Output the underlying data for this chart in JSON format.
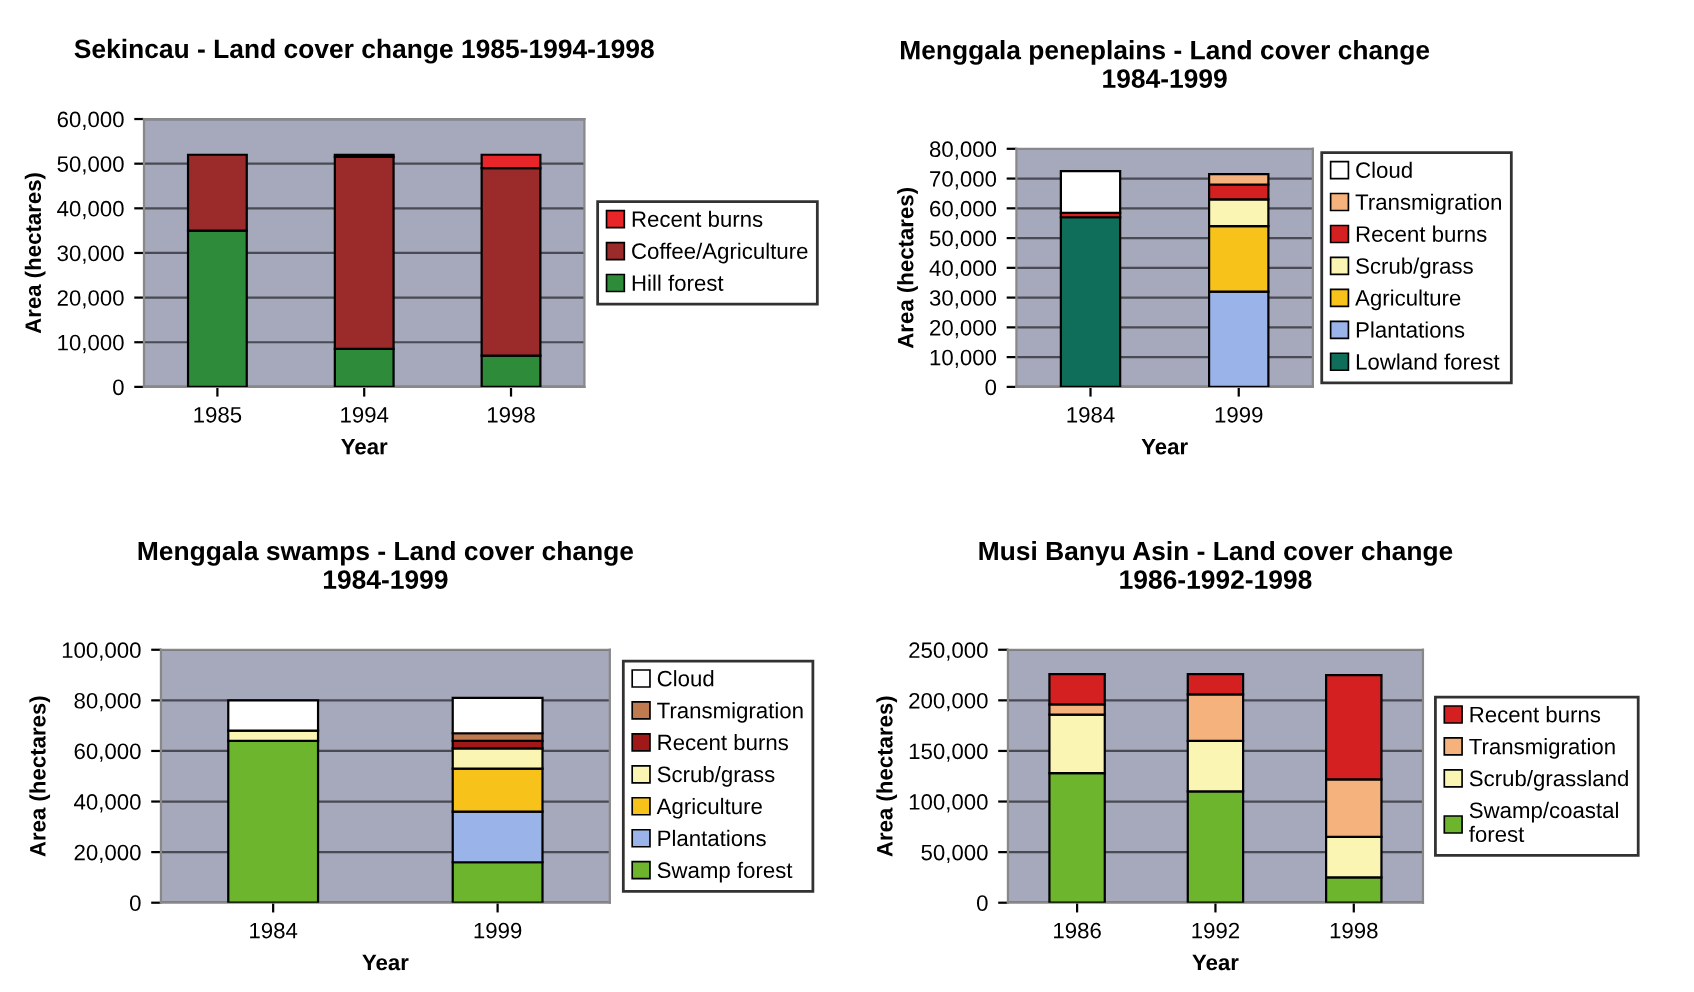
{
  "chart_data": [
    {
      "type": "bar",
      "stacked": true,
      "title": "Sekincau - Land cover change 1985-1994-1998",
      "xlabel": "Year",
      "ylabel": "Area (hectares)",
      "categories": [
        "1985",
        "1994",
        "1998"
      ],
      "ylim": [
        0,
        60000
      ],
      "yticks": [
        0,
        {
          "value": 10000,
          "label": "10,000"
        },
        {
          "value": 20000,
          "label": "20,000"
        },
        {
          "value": 30000,
          "label": "30,000"
        },
        {
          "value": 40000,
          "label": "40,000"
        },
        {
          "value": 50000,
          "label": "50,000"
        },
        {
          "value": 60000,
          "label": "60,000"
        }
      ],
      "grid": "y",
      "legend": "right",
      "series": [
        {
          "name": "Hill forest",
          "color": "#2e8b3a",
          "values": [
            35000,
            8500,
            7000
          ]
        },
        {
          "name": "Coffee/Agriculture",
          "color": "#9b2a2a",
          "values": [
            17000,
            43000,
            42000
          ]
        },
        {
          "name": "Recent burns",
          "color": "#e8262a",
          "values": [
            0,
            500,
            3000
          ]
        }
      ]
    },
    {
      "type": "bar",
      "stacked": true,
      "title": "Menggala peneplains - Land cover change\n1984-1999",
      "xlabel": "Year",
      "ylabel": "Area (hectares)",
      "categories": [
        "1984",
        "1999"
      ],
      "ylim": [
        0,
        80000
      ],
      "yticks": [
        0,
        {
          "value": 10000,
          "label": "10,000"
        },
        {
          "value": 20000,
          "label": "20,000"
        },
        {
          "value": 30000,
          "label": "30,000"
        },
        {
          "value": 40000,
          "label": "40,000"
        },
        {
          "value": 50000,
          "label": "50,000"
        },
        {
          "value": 60000,
          "label": "60,000"
        },
        {
          "value": 70000,
          "label": "70,000"
        },
        {
          "value": 80000,
          "label": "80,000"
        }
      ],
      "grid": "y",
      "legend": "right",
      "series": [
        {
          "name": "Lowland forest",
          "color": "#0f6e5a",
          "values": [
            57000,
            0
          ]
        },
        {
          "name": "Plantations",
          "color": "#9ab4ea",
          "values": [
            0,
            32000
          ]
        },
        {
          "name": "Agriculture",
          "color": "#f7c21a",
          "values": [
            0,
            22000
          ]
        },
        {
          "name": "Scrub/grass",
          "color": "#fbf5b4",
          "values": [
            0,
            9000
          ]
        },
        {
          "name": "Recent burns",
          "color": "#d42020",
          "values": [
            1500,
            5000
          ]
        },
        {
          "name": "Transmigration",
          "color": "#f5b27c",
          "values": [
            0,
            3500
          ]
        },
        {
          "name": "Cloud",
          "color": "#ffffff",
          "values": [
            14000,
            0
          ]
        }
      ]
    },
    {
      "type": "bar",
      "stacked": true,
      "title": "Menggala swamps - Land cover change\n1984-1999",
      "xlabel": "Year",
      "ylabel": "Area (hectares)",
      "categories": [
        "1984",
        "1999"
      ],
      "ylim": [
        0,
        100000
      ],
      "yticks": [
        0,
        {
          "value": 20000,
          "label": "20,000"
        },
        {
          "value": 40000,
          "label": "40,000"
        },
        {
          "value": 60000,
          "label": "60,000"
        },
        {
          "value": 80000,
          "label": "80,000"
        },
        {
          "value": 100000,
          "label": "100,000"
        }
      ],
      "grid": "y",
      "legend": "right",
      "series": [
        {
          "name": "Swamp forest",
          "color": "#6cb52c",
          "values": [
            64000,
            16000
          ]
        },
        {
          "name": "Plantations",
          "color": "#9ab4ea",
          "values": [
            0,
            20000
          ]
        },
        {
          "name": "Agriculture",
          "color": "#f7c21a",
          "values": [
            0,
            17000
          ]
        },
        {
          "name": "Scrub/grass",
          "color": "#fbf5b4",
          "values": [
            4000,
            8000
          ]
        },
        {
          "name": "Recent burns",
          "color": "#a01818",
          "values": [
            0,
            3000
          ]
        },
        {
          "name": "Transmigration",
          "color": "#c07a50",
          "values": [
            0,
            3000
          ]
        },
        {
          "name": "Cloud",
          "color": "#ffffff",
          "values": [
            12000,
            14000
          ]
        }
      ]
    },
    {
      "type": "bar",
      "stacked": true,
      "title": "Musi Banyu Asin - Land cover change\n1986-1992-1998",
      "xlabel": "Year",
      "ylabel": "Area (hectares)",
      "categories": [
        "1986",
        "1992",
        "1998"
      ],
      "ylim": [
        0,
        250000
      ],
      "yticks": [
        0,
        {
          "value": 50000,
          "label": "50,000"
        },
        {
          "value": 100000,
          "label": "100,000"
        },
        {
          "value": 150000,
          "label": "150,000"
        },
        {
          "value": 200000,
          "label": "200,000"
        },
        {
          "value": 250000,
          "label": "250,000"
        }
      ],
      "grid": "y",
      "legend": "right",
      "series": [
        {
          "name": "Swamp/coastal\nforest",
          "color": "#6cb52c",
          "values": [
            128000,
            110000,
            25000
          ]
        },
        {
          "name": "Scrub/grassland",
          "color": "#fbf5b4",
          "values": [
            58000,
            50000,
            40000
          ]
        },
        {
          "name": "Transmigration",
          "color": "#f5b27c",
          "values": [
            10000,
            46000,
            57000
          ]
        },
        {
          "name": "Recent burns",
          "color": "#d42020",
          "values": [
            30000,
            20000,
            103000
          ]
        }
      ]
    }
  ]
}
